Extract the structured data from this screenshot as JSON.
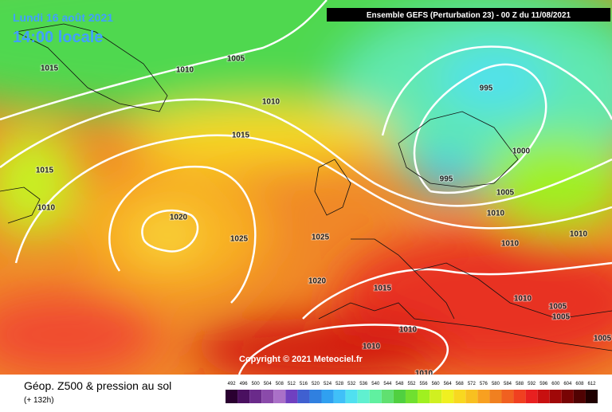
{
  "header": {
    "date": "Lundi 16 août 2021",
    "time": "14:00 locale",
    "run": "Ensemble GEFS  (Perturbation 23)  -  00 Z du 11/08/2021"
  },
  "map": {
    "isobar_labels": [
      1015,
      1010,
      1005,
      1010,
      1015,
      1015,
      1010,
      1020,
      1025,
      1025,
      1020,
      1015,
      995,
      1000,
      995,
      1005,
      1010,
      1010,
      1010,
      1010,
      1005,
      1005,
      1010,
      1010,
      1005,
      1010
    ],
    "copyright": "Copyright © 2021 Meteociel.fr"
  },
  "legend": {
    "title": "Géop. Z500 & pression au sol",
    "lead": "(+ 132h)",
    "scale": [
      492,
      496,
      500,
      504,
      508,
      512,
      516,
      520,
      524,
      528,
      532,
      536,
      540,
      544,
      548,
      552,
      556,
      560,
      564,
      568,
      572,
      576,
      580,
      584,
      588,
      592,
      596,
      600,
      604,
      608,
      612
    ],
    "colors": [
      "#2a0030",
      "#4a1060",
      "#6a2a8a",
      "#8a4aaa",
      "#aa70c8",
      "#7040c0",
      "#4060d0",
      "#3080e0",
      "#30a0f0",
      "#40c0f8",
      "#50e0f0",
      "#60f0d0",
      "#60f0a0",
      "#60e070",
      "#50d040",
      "#70e030",
      "#a0f020",
      "#d0f020",
      "#f0f020",
      "#f8d820",
      "#f8c020",
      "#f8a020",
      "#f08020",
      "#f06020",
      "#f04020",
      "#e82020",
      "#c81010",
      "#a00808",
      "#780404",
      "#500202",
      "#200000"
    ]
  }
}
